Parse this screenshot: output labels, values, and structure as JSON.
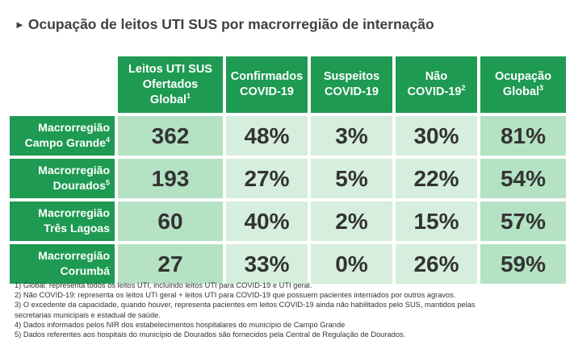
{
  "title": "Ocupação de leitos UTI SUS por macrorregião de internação",
  "title_marker": "►",
  "headers": [
    {
      "lines": [
        "Leitos UTI SUS",
        "Ofertados",
        "Global"
      ],
      "sup": "1"
    },
    {
      "lines": [
        "Confirmados",
        "COVID-19"
      ],
      "sup": ""
    },
    {
      "lines": [
        "Suspeitos",
        "COVID-19"
      ],
      "sup": ""
    },
    {
      "lines": [
        "Não",
        "COVID-19"
      ],
      "sup": "2"
    },
    {
      "lines": [
        "Ocupação",
        "Global"
      ],
      "sup": "3"
    }
  ],
  "rows": [
    {
      "label1": "Macrorregião",
      "label2": "Campo Grande",
      "sup": "4",
      "values": [
        "362",
        "48%",
        "3%",
        "30%",
        "81%"
      ]
    },
    {
      "label1": "Macrorregião",
      "label2": "Dourados",
      "sup": "5",
      "values": [
        "193",
        "27%",
        "5%",
        "22%",
        "54%"
      ]
    },
    {
      "label1": "Macrorregião",
      "label2": "Três Lagoas",
      "sup": "",
      "values": [
        "60",
        "40%",
        "2%",
        "15%",
        "57%"
      ]
    },
    {
      "label1": "Macrorregião",
      "label2": "Corumbá",
      "sup": "",
      "values": [
        "27",
        "33%",
        "0%",
        "26%",
        "59%"
      ]
    }
  ],
  "footnotes": [
    "1) Global: representa todos os leitos UTI, incluindo leitos UTI para COVID-19 e UTI geral.",
    "2) Não COVID-19: representa os leitos UTI geral + leitos UTI para COVID-19 que possuem pacientes internados por outros agravos.",
    "3) O excedente da capacidade, quando houver, representa pacientes em leitos COVID-19 ainda não habilitados pelo SUS, mantidos pelas",
    "secretarias municipais e estadual de saúde.",
    "4) Dados informados pelos NIR dos estabelecimentos hospitalares do município de Campo Grande",
    "5) Dados referentes aos hospitais do município de Dourados são fornecidos pela Central de Regulação de Dourados."
  ],
  "colors": {
    "header_green": "#1e9a52",
    "light_cell": "#d5eedd",
    "mid_cell": "#b4e2c3"
  }
}
